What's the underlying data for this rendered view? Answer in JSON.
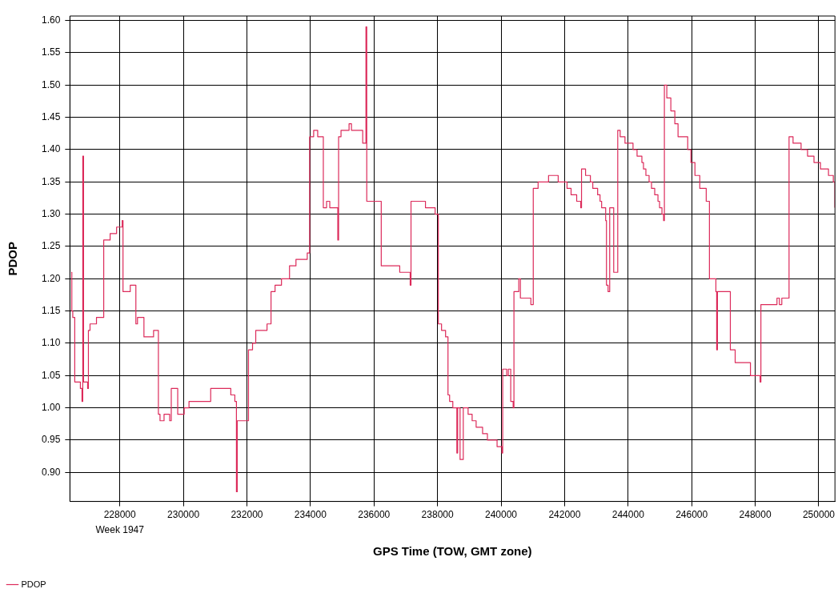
{
  "chart_data": {
    "type": "step",
    "xlabel": "GPS Time (TOW, GMT zone)",
    "ylabel": "PDOP",
    "xlim": [
      226430,
      250510
    ],
    "ylim": [
      0.855,
      1.607
    ],
    "xticks": [
      228000,
      230000,
      232000,
      234000,
      236000,
      238000,
      240000,
      242000,
      244000,
      246000,
      248000,
      250000
    ],
    "yticks": [
      {
        "value": 0.9,
        "label": "0.90"
      },
      {
        "value": 0.95,
        "label": "0.95"
      },
      {
        "value": 1.0,
        "label": "1.00"
      },
      {
        "value": 1.05,
        "label": "1.05"
      },
      {
        "value": 1.1,
        "label": "1.10"
      },
      {
        "value": 1.15,
        "label": "1.15"
      },
      {
        "value": 1.2,
        "label": "1.20"
      },
      {
        "value": 1.25,
        "label": "1.25"
      },
      {
        "value": 1.3,
        "label": "1.30"
      },
      {
        "value": 1.35,
        "label": "1.35"
      },
      {
        "value": 1.4,
        "label": "1.40"
      },
      {
        "value": 1.45,
        "label": "1.45"
      },
      {
        "value": 1.5,
        "label": "1.50"
      },
      {
        "value": 1.55,
        "label": "1.55"
      },
      {
        "value": 1.6,
        "label": "1.60"
      }
    ],
    "grid": true,
    "legend": "bottom",
    "marker": "none",
    "line_style": "solid",
    "annotations": [
      "Week 1947"
    ],
    "series": [
      {
        "name": "PDOP",
        "color": "#dc2a5a",
        "x": [
          226470,
          226490,
          226520,
          226582,
          226759,
          226810,
          226835,
          226860,
          226987,
          227012,
          227063,
          227266,
          227494,
          227696,
          227899,
          228076,
          228101,
          228329,
          228506,
          228557,
          228760,
          229063,
          229215,
          229266,
          229393,
          229570,
          229620,
          229823,
          230026,
          230178,
          230861,
          231494,
          231621,
          231671,
          231697,
          231975,
          232051,
          232178,
          232279,
          232634,
          232760,
          232887,
          233089,
          233342,
          233545,
          233900,
          233975,
          234102,
          234229,
          234406,
          234508,
          234609,
          234862,
          234887,
          234963,
          235216,
          235292,
          235646,
          235748,
          235773,
          236229,
          236811,
          237140,
          237166,
          237621,
          237925,
          238026,
          238127,
          238254,
          238330,
          238381,
          238482,
          238609,
          238634,
          238710,
          238811,
          238963,
          239090,
          239216,
          239419,
          239571,
          239875,
          240026,
          240052,
          240178,
          240229,
          240305,
          240381,
          240406,
          240558,
          240609,
          240938,
          241014,
          241166,
          241495,
          241799,
          242077,
          242204,
          242381,
          242508,
          242533,
          242660,
          242812,
          242888,
          243040,
          243116,
          243166,
          243293,
          243318,
          243369,
          243420,
          243546,
          243673,
          243749,
          243901,
          244154,
          244281,
          244433,
          244483,
          244559,
          244660,
          244736,
          244837,
          244939,
          244989,
          245065,
          245116,
          245141,
          245217,
          245344,
          245470,
          245571,
          245875,
          245976,
          246103,
          246255,
          246458,
          246559,
          246762,
          246787,
          246812,
          247217,
          247369,
          247850,
          248154,
          248179,
          248685,
          248761,
          248837,
          249065,
          249191,
          249444,
          249647,
          249850,
          250053,
          250306,
          250458,
          250508
        ],
        "values": [
          1.21,
          1.15,
          1.14,
          1.04,
          1.03,
          1.01,
          1.39,
          1.04,
          1.03,
          1.12,
          1.13,
          1.14,
          1.26,
          1.27,
          1.28,
          1.29,
          1.18,
          1.19,
          1.13,
          1.14,
          1.11,
          1.12,
          0.99,
          0.98,
          0.99,
          0.98,
          1.03,
          0.99,
          1.0,
          1.01,
          1.03,
          1.02,
          1.01,
          0.87,
          0.98,
          0.98,
          1.09,
          1.1,
          1.12,
          1.13,
          1.18,
          1.19,
          1.2,
          1.22,
          1.23,
          1.24,
          1.42,
          1.43,
          1.42,
          1.31,
          1.32,
          1.31,
          1.26,
          1.42,
          1.43,
          1.44,
          1.43,
          1.41,
          1.59,
          1.32,
          1.22,
          1.21,
          1.19,
          1.32,
          1.31,
          1.3,
          1.13,
          1.12,
          1.11,
          1.02,
          1.01,
          1.0,
          0.93,
          1.0,
          0.92,
          1.0,
          0.99,
          0.98,
          0.97,
          0.96,
          0.95,
          0.94,
          0.93,
          1.06,
          1.05,
          1.06,
          1.01,
          1.0,
          1.18,
          1.2,
          1.17,
          1.16,
          1.34,
          1.35,
          1.36,
          1.35,
          1.34,
          1.33,
          1.32,
          1.31,
          1.37,
          1.36,
          1.35,
          1.34,
          1.33,
          1.32,
          1.31,
          1.29,
          1.19,
          1.18,
          1.31,
          1.21,
          1.43,
          1.42,
          1.41,
          1.4,
          1.39,
          1.38,
          1.37,
          1.36,
          1.35,
          1.34,
          1.33,
          1.32,
          1.31,
          1.3,
          1.29,
          1.5,
          1.48,
          1.46,
          1.44,
          1.42,
          1.4,
          1.38,
          1.36,
          1.34,
          1.32,
          1.2,
          1.18,
          1.09,
          1.18,
          1.09,
          1.07,
          1.05,
          1.04,
          1.16,
          1.17,
          1.16,
          1.17,
          1.42,
          1.41,
          1.4,
          1.39,
          1.38,
          1.37,
          1.36,
          1.35,
          1.31
        ]
      }
    ]
  }
}
